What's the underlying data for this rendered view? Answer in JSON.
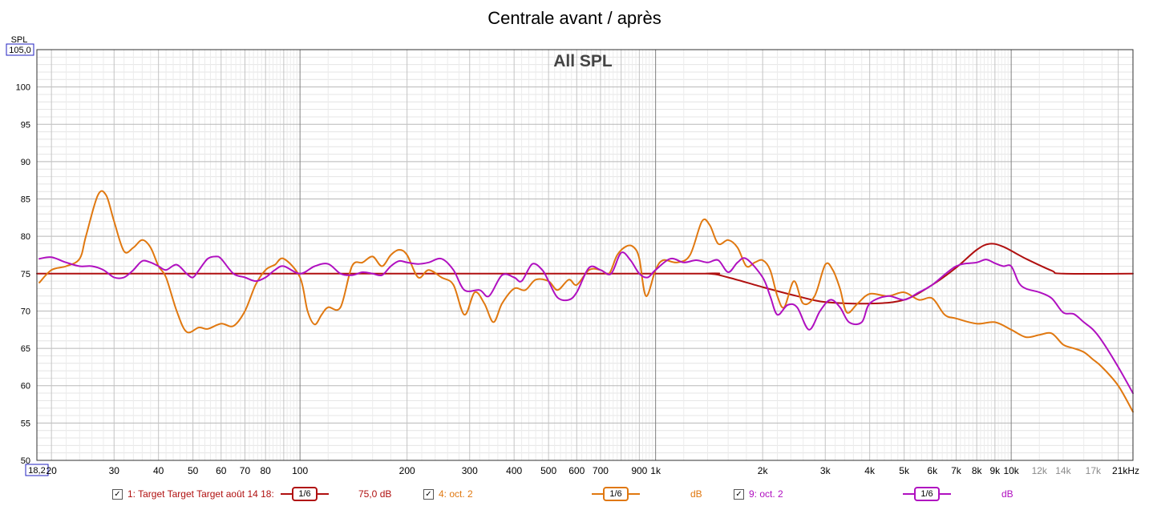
{
  "chart_data": {
    "type": "line",
    "title": "Centrale avant / après",
    "subtitle": "All SPL",
    "ylabel": "SPL",
    "y_top_value": "105,0",
    "x_left_value": "18,2",
    "ylim": [
      50,
      105
    ],
    "xlim": [
      18.2,
      22000
    ],
    "x_scale": "log",
    "grid": true,
    "y_ticks": [
      {
        "v": 50,
        "label": "50"
      },
      {
        "v": 55,
        "label": "55"
      },
      {
        "v": 60,
        "label": "60"
      },
      {
        "v": 65,
        "label": "65"
      },
      {
        "v": 70,
        "label": "70"
      },
      {
        "v": 75,
        "label": "75"
      },
      {
        "v": 80,
        "label": "80"
      },
      {
        "v": 85,
        "label": "85"
      },
      {
        "v": 90,
        "label": "90"
      },
      {
        "v": 95,
        "label": "95"
      },
      {
        "v": 100,
        "label": "100"
      }
    ],
    "x_ticks": [
      {
        "v": 20,
        "label": "20",
        "minor": false
      },
      {
        "v": 30,
        "label": "30",
        "minor": false
      },
      {
        "v": 40,
        "label": "40",
        "minor": false
      },
      {
        "v": 50,
        "label": "50",
        "minor": false
      },
      {
        "v": 60,
        "label": "60",
        "minor": false
      },
      {
        "v": 70,
        "label": "70",
        "minor": false
      },
      {
        "v": 80,
        "label": "80",
        "minor": false
      },
      {
        "v": 100,
        "label": "100",
        "minor": false
      },
      {
        "v": 200,
        "label": "200",
        "minor": false
      },
      {
        "v": 300,
        "label": "300",
        "minor": false
      },
      {
        "v": 400,
        "label": "400",
        "minor": false
      },
      {
        "v": 500,
        "label": "500",
        "minor": false
      },
      {
        "v": 600,
        "label": "600",
        "minor": false
      },
      {
        "v": 700,
        "label": "700",
        "minor": false
      },
      {
        "v": 900,
        "label": "900",
        "minor": false
      },
      {
        "v": 1000,
        "label": "1k",
        "minor": false
      },
      {
        "v": 2000,
        "label": "2k",
        "minor": false
      },
      {
        "v": 3000,
        "label": "3k",
        "minor": false
      },
      {
        "v": 4000,
        "label": "4k",
        "minor": false
      },
      {
        "v": 5000,
        "label": "5k",
        "minor": false
      },
      {
        "v": 6000,
        "label": "6k",
        "minor": false
      },
      {
        "v": 7000,
        "label": "7k",
        "minor": false
      },
      {
        "v": 8000,
        "label": "8k",
        "minor": false
      },
      {
        "v": 9000,
        "label": "9k",
        "minor": false
      },
      {
        "v": 10000,
        "label": "10k",
        "minor": false
      },
      {
        "v": 12000,
        "label": "12k",
        "minor": true
      },
      {
        "v": 14000,
        "label": "14k",
        "minor": true
      },
      {
        "v": 17000,
        "label": "17k",
        "minor": true
      },
      {
        "v": 21000,
        "label": "21kHz",
        "minor": false
      }
    ],
    "series": [
      {
        "name": "1: Target Target Target août 14 18:",
        "color": "#b01010",
        "points": [
          [
            18.2,
            75
          ],
          [
            1000,
            75
          ],
          [
            1400,
            75
          ],
          [
            1600,
            74.5
          ],
          [
            2000,
            73.2
          ],
          [
            2500,
            72
          ],
          [
            3000,
            71.2
          ],
          [
            4000,
            71
          ],
          [
            5000,
            71.5
          ],
          [
            6000,
            73.5
          ],
          [
            7000,
            75.8
          ],
          [
            8000,
            78.2
          ],
          [
            8700,
            79
          ],
          [
            9500,
            78.6
          ],
          [
            11000,
            77
          ],
          [
            13000,
            75.4
          ],
          [
            14000,
            75
          ],
          [
            22000,
            75
          ]
        ]
      },
      {
        "name": "4: oct. 2",
        "color": "#e07810",
        "points": [
          [
            18.5,
            73.8
          ],
          [
            20,
            75.5
          ],
          [
            22,
            76
          ],
          [
            24,
            77
          ],
          [
            25,
            80
          ],
          [
            27,
            85.5
          ],
          [
            28.5,
            85.5
          ],
          [
            30,
            82
          ],
          [
            32,
            78
          ],
          [
            34,
            78.5
          ],
          [
            36,
            79.5
          ],
          [
            38,
            78.5
          ],
          [
            40,
            76
          ],
          [
            42,
            74.5
          ],
          [
            45,
            70
          ],
          [
            48,
            67.2
          ],
          [
            52,
            67.8
          ],
          [
            55,
            67.6
          ],
          [
            60,
            68.3
          ],
          [
            65,
            68
          ],
          [
            70,
            70
          ],
          [
            75,
            73.5
          ],
          [
            80,
            75.5
          ],
          [
            85,
            76.2
          ],
          [
            90,
            77
          ],
          [
            100,
            74.5
          ],
          [
            105,
            70
          ],
          [
            110,
            68.2
          ],
          [
            115,
            69.5
          ],
          [
            120,
            70.5
          ],
          [
            130,
            70.5
          ],
          [
            140,
            76
          ],
          [
            150,
            76.5
          ],
          [
            160,
            77.3
          ],
          [
            170,
            76
          ],
          [
            180,
            77.5
          ],
          [
            190,
            78.2
          ],
          [
            200,
            77.5
          ],
          [
            215,
            74.5
          ],
          [
            230,
            75.5
          ],
          [
            250,
            74.5
          ],
          [
            270,
            73.5
          ],
          [
            290,
            69.5
          ],
          [
            310,
            72.5
          ],
          [
            330,
            71
          ],
          [
            350,
            68.5
          ],
          [
            370,
            71
          ],
          [
            400,
            73
          ],
          [
            430,
            72.8
          ],
          [
            460,
            74.2
          ],
          [
            500,
            74
          ],
          [
            530,
            72.8
          ],
          [
            570,
            74.2
          ],
          [
            600,
            73.5
          ],
          [
            650,
            75.5
          ],
          [
            700,
            75.5
          ],
          [
            740,
            75
          ],
          [
            780,
            77.5
          ],
          [
            830,
            78.7
          ],
          [
            870,
            78.5
          ],
          [
            900,
            77
          ],
          [
            940,
            72
          ],
          [
            1000,
            75.5
          ],
          [
            1050,
            76.8
          ],
          [
            1150,
            76.5
          ],
          [
            1250,
            77.5
          ],
          [
            1350,
            82
          ],
          [
            1420,
            81.5
          ],
          [
            1500,
            79
          ],
          [
            1600,
            79.5
          ],
          [
            1700,
            78.5
          ],
          [
            1800,
            76
          ],
          [
            1900,
            76.5
          ],
          [
            2000,
            76.8
          ],
          [
            2100,
            75.5
          ],
          [
            2200,
            72
          ],
          [
            2300,
            70.5
          ],
          [
            2450,
            74
          ],
          [
            2600,
            71
          ],
          [
            2800,
            72
          ],
          [
            3000,
            76.2
          ],
          [
            3150,
            75.5
          ],
          [
            3300,
            73
          ],
          [
            3450,
            69.8
          ],
          [
            3700,
            71
          ],
          [
            4000,
            72.3
          ],
          [
            4500,
            72
          ],
          [
            5000,
            72.5
          ],
          [
            5500,
            71.5
          ],
          [
            6000,
            71.7
          ],
          [
            6500,
            69.5
          ],
          [
            7000,
            69
          ],
          [
            8000,
            68.3
          ],
          [
            9000,
            68.5
          ],
          [
            10000,
            67.5
          ],
          [
            11000,
            66.5
          ],
          [
            12000,
            66.8
          ],
          [
            13000,
            67
          ],
          [
            14000,
            65.5
          ],
          [
            15000,
            65
          ],
          [
            16000,
            64.5
          ],
          [
            17000,
            63.5
          ],
          [
            18000,
            62.5
          ],
          [
            20000,
            60
          ],
          [
            22000,
            56.5
          ]
        ]
      },
      {
        "name": "9: oct. 2",
        "color": "#b010c0",
        "points": [
          [
            18.5,
            77
          ],
          [
            20,
            77.2
          ],
          [
            22,
            76.5
          ],
          [
            24,
            76
          ],
          [
            26,
            76
          ],
          [
            28,
            75.5
          ],
          [
            30,
            74.5
          ],
          [
            32,
            74.5
          ],
          [
            34,
            75.5
          ],
          [
            36,
            76.7
          ],
          [
            38,
            76.5
          ],
          [
            40,
            76
          ],
          [
            42,
            75.5
          ],
          [
            45,
            76.2
          ],
          [
            48,
            75
          ],
          [
            50,
            74.5
          ],
          [
            52,
            75.5
          ],
          [
            55,
            77
          ],
          [
            58,
            77.3
          ],
          [
            60,
            77
          ],
          [
            65,
            75
          ],
          [
            70,
            74.5
          ],
          [
            75,
            74
          ],
          [
            80,
            74.5
          ],
          [
            85,
            75.5
          ],
          [
            90,
            76
          ],
          [
            100,
            75
          ],
          [
            110,
            76
          ],
          [
            120,
            76.3
          ],
          [
            130,
            75
          ],
          [
            140,
            74.8
          ],
          [
            150,
            75.2
          ],
          [
            160,
            75
          ],
          [
            170,
            74.8
          ],
          [
            180,
            76
          ],
          [
            190,
            76.7
          ],
          [
            200,
            76.5
          ],
          [
            215,
            76.3
          ],
          [
            230,
            76.5
          ],
          [
            250,
            77
          ],
          [
            270,
            75.5
          ],
          [
            290,
            72.8
          ],
          [
            320,
            72.8
          ],
          [
            340,
            72
          ],
          [
            370,
            74.8
          ],
          [
            400,
            74.5
          ],
          [
            420,
            74
          ],
          [
            450,
            76.3
          ],
          [
            480,
            75.5
          ],
          [
            500,
            74
          ],
          [
            530,
            71.8
          ],
          [
            570,
            71.5
          ],
          [
            600,
            72.5
          ],
          [
            650,
            75.8
          ],
          [
            700,
            75.5
          ],
          [
            750,
            75
          ],
          [
            800,
            77.8
          ],
          [
            850,
            76.8
          ],
          [
            900,
            75
          ],
          [
            950,
            74.5
          ],
          [
            1000,
            75.5
          ],
          [
            1100,
            77
          ],
          [
            1200,
            76.5
          ],
          [
            1300,
            76.8
          ],
          [
            1400,
            76.5
          ],
          [
            1500,
            76.8
          ],
          [
            1600,
            75.2
          ],
          [
            1700,
            76.5
          ],
          [
            1800,
            77
          ],
          [
            2000,
            74.5
          ],
          [
            2100,
            72
          ],
          [
            2200,
            69.5
          ],
          [
            2350,
            70.8
          ],
          [
            2500,
            70.5
          ],
          [
            2700,
            67.5
          ],
          [
            2900,
            70
          ],
          [
            3100,
            71.5
          ],
          [
            3300,
            70.5
          ],
          [
            3500,
            68.5
          ],
          [
            3800,
            68.5
          ],
          [
            4000,
            71
          ],
          [
            4500,
            72
          ],
          [
            5000,
            71.5
          ],
          [
            5500,
            72.5
          ],
          [
            6000,
            73.5
          ],
          [
            7000,
            76
          ],
          [
            8000,
            76.5
          ],
          [
            8500,
            76.9
          ],
          [
            9000,
            76.4
          ],
          [
            9500,
            76
          ],
          [
            10000,
            76
          ],
          [
            10500,
            73.8
          ],
          [
            11000,
            73
          ],
          [
            12000,
            72.5
          ],
          [
            13000,
            71.7
          ],
          [
            14000,
            69.8
          ],
          [
            15000,
            69.6
          ],
          [
            16000,
            68.5
          ],
          [
            17000,
            67.5
          ],
          [
            18000,
            66
          ],
          [
            20000,
            62.5
          ],
          [
            22000,
            59
          ]
        ]
      }
    ]
  },
  "legend": {
    "items": [
      {
        "check": "✓",
        "label": "1: Target Target Target août 14 18:",
        "smoothing": "1/6",
        "value": "75,0 dB",
        "color": "#b01010"
      },
      {
        "check": "✓",
        "label": "4: oct. 2",
        "smoothing": "1/6",
        "value": "dB",
        "color": "#e07810"
      },
      {
        "check": "✓",
        "label": "9: oct. 2",
        "smoothing": "1/6",
        "value": "dB",
        "color": "#b010c0"
      }
    ]
  }
}
